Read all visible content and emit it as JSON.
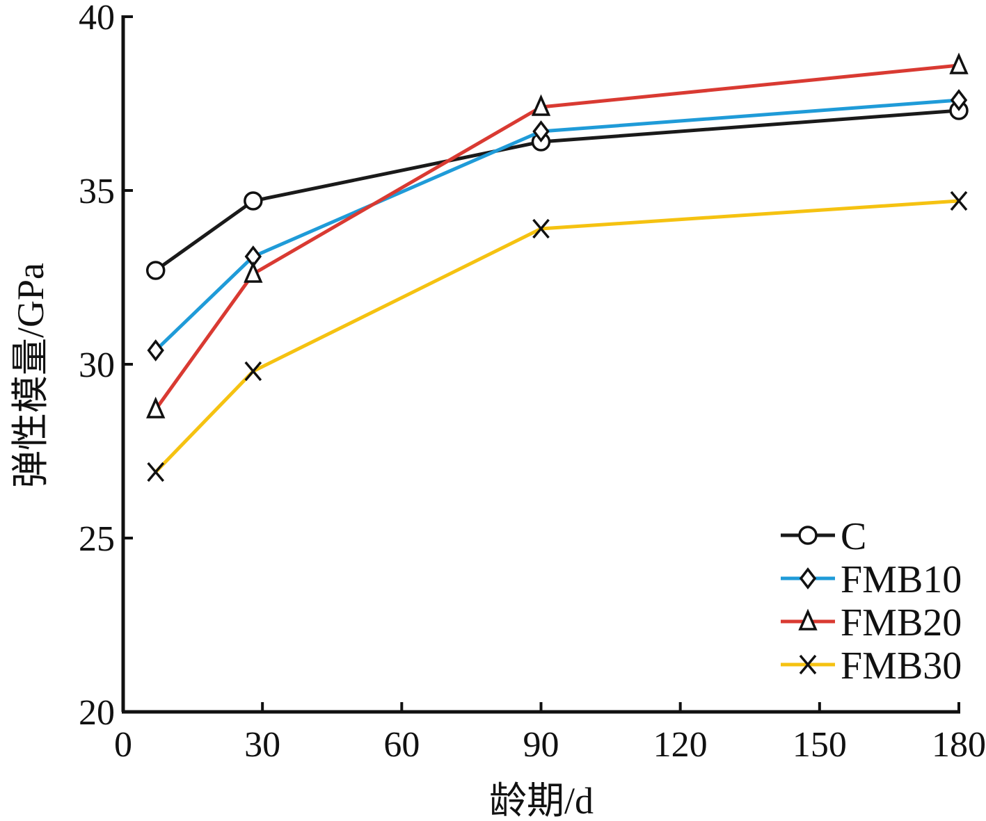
{
  "chart_data": {
    "type": "line",
    "xlabel": "龄期/d",
    "ylabel": "弹性模量/GPa",
    "xlim": [
      0,
      180
    ],
    "ylim": [
      20,
      40
    ],
    "xticks": [
      0,
      30,
      60,
      90,
      120,
      150,
      180
    ],
    "xtick_labels": [
      "0",
      "30",
      "60",
      "90",
      "120",
      "150",
      "180"
    ],
    "yticks": [
      20,
      25,
      30,
      35,
      40
    ],
    "ytick_labels": [
      "20",
      "25",
      "30",
      "35",
      "40"
    ],
    "x": [
      7,
      28,
      90,
      180
    ],
    "grid": false,
    "legend_position": "bottom-right",
    "series": [
      {
        "name": "C",
        "values": [
          32.7,
          34.7,
          36.4,
          37.3
        ],
        "color": "#1a1a1a",
        "marker": "circle"
      },
      {
        "name": "FMB10",
        "values": [
          30.4,
          33.1,
          36.7,
          37.6
        ],
        "color": "#1f9bd8",
        "marker": "diamond"
      },
      {
        "name": "FMB20",
        "values": [
          28.7,
          32.6,
          37.4,
          38.6
        ],
        "color": "#d93a32",
        "marker": "triangle"
      },
      {
        "name": "FMB30",
        "values": [
          26.9,
          29.8,
          33.9,
          34.7
        ],
        "color": "#f5c211",
        "marker": "x"
      }
    ]
  }
}
